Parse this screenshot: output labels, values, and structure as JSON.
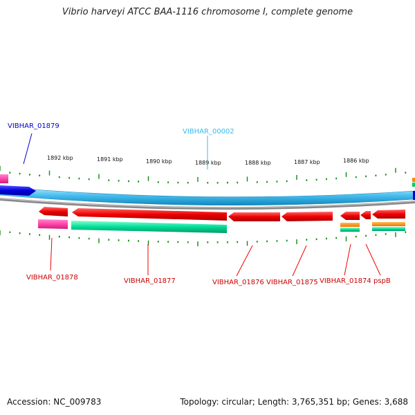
{
  "title": "Vibrio harveyi ATCC BAA-1116 chromosome I, complete genome",
  "scale_labels": [
    "1892 kbp",
    "1891 kbp",
    "1890 kbp",
    "1889 kbp",
    "1888 kbp",
    "1887 kbp",
    "1886 kbp"
  ],
  "gene_labels": {
    "g01879": "VIBHAR_01879",
    "g00002": "VIBHAR_00002",
    "g01878": "VIBHAR_01878",
    "g01877": "VIBHAR_01877",
    "g01876": "VIBHAR_01876",
    "g01875": "VIBHAR_01875",
    "g01874": "VIBHAR_01874",
    "pspB": "pspB"
  },
  "colors": {
    "cds": "#ee0000",
    "rna": "#00dd99",
    "magenta": "#ff44aa",
    "orange": "#ff8800",
    "blue_gene": "#0000cc",
    "cyan_gene": "#33bbee",
    "backbone": "#888888",
    "tick": "#118811"
  },
  "accession": "Accession: NC_009783",
  "summary": "Topology: circular; Length: 3,765,351 bp; Genes: 3,688"
}
